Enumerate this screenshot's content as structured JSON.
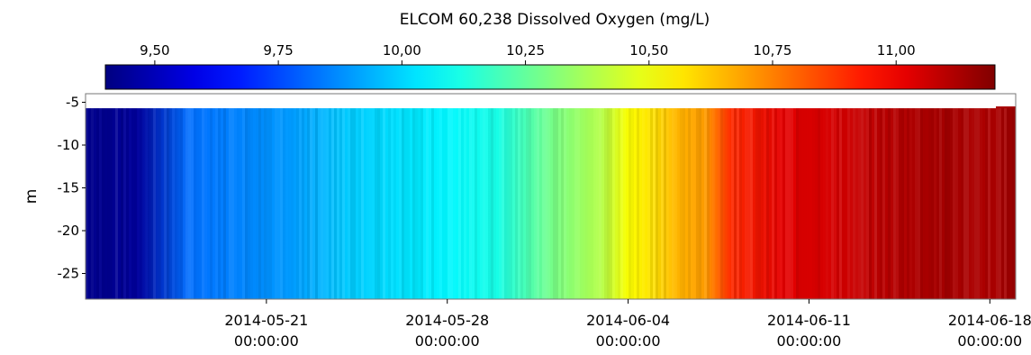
{
  "chart_data": {
    "type": "heatmap",
    "title": "ELCOM 60,238 Dissolved Oxygen (mg/L)",
    "ylabel": "m",
    "xlabel": "",
    "colorbar": {
      "range": [
        9.4,
        11.2
      ],
      "ticks": [
        {
          "value": 9.5,
          "label": "9,50"
        },
        {
          "value": 9.75,
          "label": "9,75"
        },
        {
          "value": 10.0,
          "label": "10,00"
        },
        {
          "value": 10.25,
          "label": "10,25"
        },
        {
          "value": 10.5,
          "label": "10,50"
        },
        {
          "value": 10.75,
          "label": "10,75"
        },
        {
          "value": 11.0,
          "label": "11,00"
        }
      ],
      "colormap": "jet",
      "placement": "top"
    },
    "ylim": [
      -28,
      -4
    ],
    "y_ticks": [
      {
        "value": -5,
        "label": "-5"
      },
      {
        "value": -10,
        "label": "-10"
      },
      {
        "value": -15,
        "label": "-15"
      },
      {
        "value": -20,
        "label": "-20"
      },
      {
        "value": -25,
        "label": "-25"
      }
    ],
    "xlim": [
      "2014-05-14",
      "2014-06-19"
    ],
    "x_ticks": [
      {
        "value": "2014-05-21",
        "date": "2014-05-21",
        "time": "00:00:00"
      },
      {
        "value": "2014-05-28",
        "date": "2014-05-28",
        "time": "00:00:00"
      },
      {
        "value": "2014-06-04",
        "date": "2014-06-04",
        "time": "00:00:00"
      },
      {
        "value": "2014-06-11",
        "date": "2014-06-11",
        "time": "00:00:00"
      },
      {
        "value": "2014-06-18",
        "date": "2014-06-18",
        "time": "00:00:00"
      }
    ],
    "surface_depth": -5.7,
    "bottom_depth": -28,
    "x": [
      "2014-05-14",
      "2014-05-16",
      "2014-05-18",
      "2014-05-20",
      "2014-05-22",
      "2014-05-24",
      "2014-05-26",
      "2014-05-28",
      "2014-05-30",
      "2014-06-01",
      "2014-06-03",
      "2014-06-04",
      "2014-06-05",
      "2014-06-06",
      "2014-06-07",
      "2014-06-08",
      "2014-06-10",
      "2014-06-12",
      "2014-06-14",
      "2014-06-16",
      "2014-06-18",
      "2014-06-19"
    ],
    "values": [
      9.42,
      9.45,
      9.82,
      9.86,
      9.9,
      9.98,
      10.02,
      10.06,
      10.12,
      10.28,
      10.4,
      10.52,
      10.58,
      10.66,
      10.7,
      10.9,
      11.02,
      11.05,
      11.1,
      11.13,
      11.12,
      11.14
    ]
  }
}
